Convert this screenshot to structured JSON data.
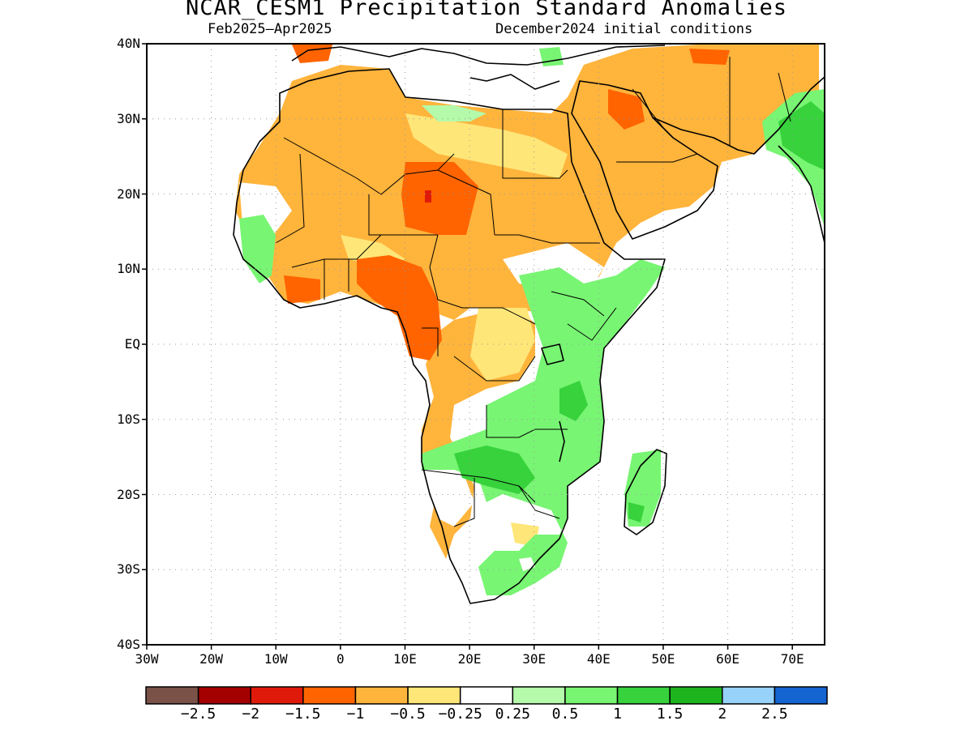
{
  "title": "NCAR_CESM1 Precipitation Standard Anomalies",
  "subtitle_left": "Feb2025–Apr2025",
  "subtitle_right": "December2024 initial conditions",
  "map": {
    "lat_range": [
      -40,
      40
    ],
    "lon_range": [
      -30,
      75
    ],
    "lat_ticks": [
      {
        "value": 40,
        "label": "40N"
      },
      {
        "value": 30,
        "label": "30N"
      },
      {
        "value": 20,
        "label": "20N"
      },
      {
        "value": 10,
        "label": "10N"
      },
      {
        "value": 0,
        "label": "EQ"
      },
      {
        "value": -10,
        "label": "10S"
      },
      {
        "value": -20,
        "label": "20S"
      },
      {
        "value": -30,
        "label": "30S"
      },
      {
        "value": -40,
        "label": "40S"
      }
    ],
    "lon_ticks": [
      {
        "value": -30,
        "label": "30W"
      },
      {
        "value": -20,
        "label": "20W"
      },
      {
        "value": -10,
        "label": "10W"
      },
      {
        "value": 0,
        "label": "0"
      },
      {
        "value": 10,
        "label": "10E"
      },
      {
        "value": 20,
        "label": "20E"
      },
      {
        "value": 30,
        "label": "30E"
      },
      {
        "value": 40,
        "label": "40E"
      },
      {
        "value": 50,
        "label": "50E"
      },
      {
        "value": 60,
        "label": "60E"
      },
      {
        "value": 70,
        "label": "70E"
      }
    ],
    "grid": true
  },
  "colorbar": {
    "colors": [
      "#7a5248",
      "#a50000",
      "#e01a0a",
      "#ff6400",
      "#ffb43c",
      "#ffe678",
      "#ffffff",
      "#b4faaa",
      "#78f573",
      "#37d23c",
      "#1eb41e",
      "#96d2fa",
      "#1464d2"
    ],
    "labels": [
      "−2.5",
      "−2",
      "−1.5",
      "−1",
      "−0.5",
      "−0.25",
      "0.25",
      "0.5",
      "1",
      "1.5",
      "2",
      "2.5"
    ]
  }
}
